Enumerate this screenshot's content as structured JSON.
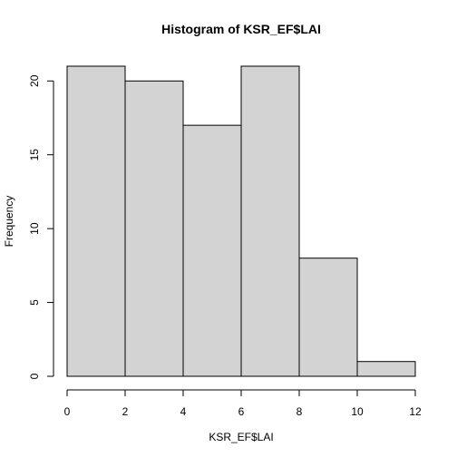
{
  "chart_data": {
    "type": "bar",
    "title": "Histogram of KSR_EF$LAI",
    "xlabel": "KSR_EF$LAI",
    "ylabel": "Frequency",
    "bins": [
      {
        "from": 0,
        "to": 2,
        "count": 21
      },
      {
        "from": 2,
        "to": 4,
        "count": 20
      },
      {
        "from": 4,
        "to": 6,
        "count": 17
      },
      {
        "from": 6,
        "to": 8,
        "count": 21
      },
      {
        "from": 8,
        "to": 10,
        "count": 8
      },
      {
        "from": 10,
        "to": 12,
        "count": 1
      }
    ],
    "xlim": [
      0,
      12
    ],
    "ylim": [
      0,
      21
    ],
    "xticks": [
      0,
      2,
      4,
      6,
      8,
      10,
      12
    ],
    "yticks": [
      0,
      5,
      10,
      15,
      20
    ],
    "grid": false,
    "bar_color": "#d3d3d3",
    "edge_color": "#000000"
  }
}
